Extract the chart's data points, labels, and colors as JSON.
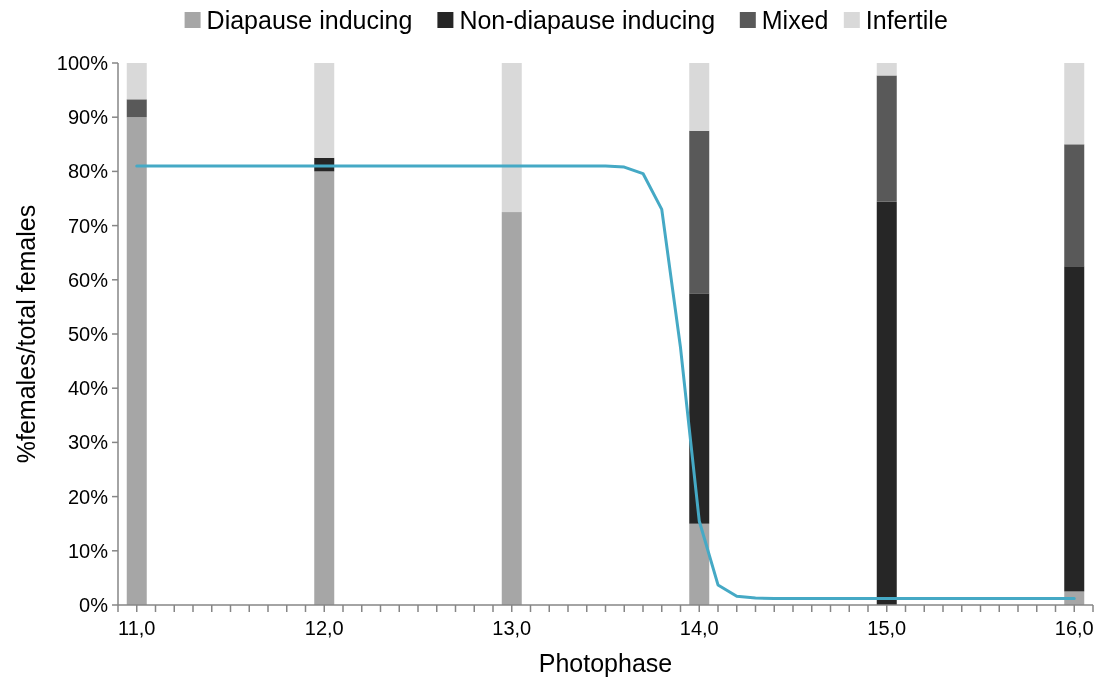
{
  "chart_data": {
    "type": "bar",
    "stacked": true,
    "xlabel": "Photophase",
    "ylabel": "%females/total females",
    "legend": "top",
    "x": [
      11,
      12,
      13,
      14,
      15,
      16
    ],
    "xlim": [
      10.9,
      16.1
    ],
    "xticks": [
      {
        "value": 10.9,
        "label": null
      },
      {
        "value": 11,
        "label": "11,0"
      },
      {
        "value": 11.1,
        "label": null
      },
      {
        "value": 11.2,
        "label": null
      },
      {
        "value": 11.3,
        "label": null
      },
      {
        "value": 11.4,
        "label": null
      },
      {
        "value": 11.5,
        "label": null
      },
      {
        "value": 11.6,
        "label": null
      },
      {
        "value": 11.7,
        "label": null
      },
      {
        "value": 11.8,
        "label": null
      },
      {
        "value": 11.9,
        "label": null
      },
      {
        "value": 12,
        "label": "12,0"
      },
      {
        "value": 12.1,
        "label": null
      },
      {
        "value": 12.2,
        "label": null
      },
      {
        "value": 12.3,
        "label": null
      },
      {
        "value": 12.4,
        "label": null
      },
      {
        "value": 12.5,
        "label": null
      },
      {
        "value": 12.6,
        "label": null
      },
      {
        "value": 12.7,
        "label": null
      },
      {
        "value": 12.8,
        "label": null
      },
      {
        "value": 12.9,
        "label": null
      },
      {
        "value": 13,
        "label": "13,0"
      },
      {
        "value": 13.1,
        "label": null
      },
      {
        "value": 13.2,
        "label": null
      },
      {
        "value": 13.3,
        "label": null
      },
      {
        "value": 13.4,
        "label": null
      },
      {
        "value": 13.5,
        "label": null
      },
      {
        "value": 13.6,
        "label": null
      },
      {
        "value": 13.7,
        "label": null
      },
      {
        "value": 13.8,
        "label": null
      },
      {
        "value": 13.9,
        "label": null
      },
      {
        "value": 14,
        "label": "14,0"
      },
      {
        "value": 14.1,
        "label": null
      },
      {
        "value": 14.2,
        "label": null
      },
      {
        "value": 14.3,
        "label": null
      },
      {
        "value": 14.4,
        "label": null
      },
      {
        "value": 14.5,
        "label": null
      },
      {
        "value": 14.6,
        "label": null
      },
      {
        "value": 14.7,
        "label": null
      },
      {
        "value": 14.8,
        "label": null
      },
      {
        "value": 14.9,
        "label": null
      },
      {
        "value": 15,
        "label": "15,0"
      },
      {
        "value": 15.1,
        "label": null
      },
      {
        "value": 15.2,
        "label": null
      },
      {
        "value": 15.3,
        "label": null
      },
      {
        "value": 15.4,
        "label": null
      },
      {
        "value": 15.5,
        "label": null
      },
      {
        "value": 15.6,
        "label": null
      },
      {
        "value": 15.7,
        "label": null
      },
      {
        "value": 15.8,
        "label": null
      },
      {
        "value": 15.9,
        "label": null
      },
      {
        "value": 16,
        "label": "16,0"
      },
      {
        "value": 16.1,
        "label": null
      }
    ],
    "ylim": [
      0,
      100
    ],
    "yticks": [
      {
        "value": 0,
        "label": "0%"
      },
      {
        "value": 10,
        "label": "10%"
      },
      {
        "value": 20,
        "label": "20%"
      },
      {
        "value": 30,
        "label": "30%"
      },
      {
        "value": 40,
        "label": "40%"
      },
      {
        "value": 50,
        "label": "50%"
      },
      {
        "value": 60,
        "label": "60%"
      },
      {
        "value": 70,
        "label": "70%"
      },
      {
        "value": 80,
        "label": "80%"
      },
      {
        "value": 90,
        "label": "90%"
      },
      {
        "value": 100,
        "label": "100%"
      }
    ],
    "series": [
      {
        "name": "Diapause inducing",
        "color": "#a6a6a6",
        "values": [
          90,
          80,
          72.5,
          15,
          0,
          2.5
        ]
      },
      {
        "name": "Non-diapause inducing",
        "color": "#262626",
        "values": [
          0,
          2.5,
          0,
          42.5,
          74.4,
          60
        ]
      },
      {
        "name": "Mixed",
        "color": "#595959",
        "values": [
          3.3,
          0,
          0,
          30,
          23.3,
          22.5
        ]
      },
      {
        "name": "Infertile",
        "color": "#d9d9d9",
        "values": [
          6.7,
          17.5,
          27.5,
          12.5,
          2.3,
          15
        ]
      },
      {
        "type": "line",
        "color": "#45a9c5",
        "x": [
          11,
          13.5,
          13.6,
          13.7,
          13.8,
          13.9,
          14,
          14.1,
          14.2,
          14.3,
          14.4,
          16
        ],
        "values": [
          81,
          81,
          80.8,
          79.6,
          73,
          47.5,
          15.5,
          3.7,
          1.6,
          1.3,
          1.2,
          1.2
        ]
      }
    ]
  }
}
